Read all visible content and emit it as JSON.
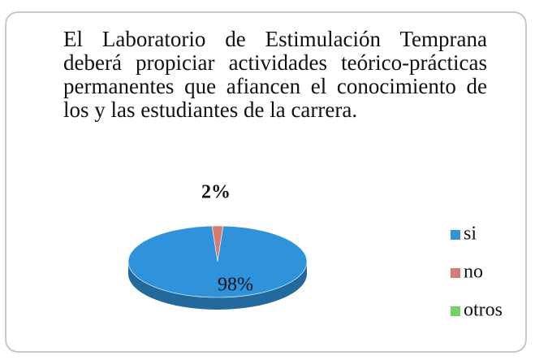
{
  "chart_data": {
    "type": "pie",
    "title": "El Laboratorio de Estimulación Temprana deberá propiciar actividades teórico-prácticas permanentes que afiancen el conocimiento de los y las estudiantes de la carrera.",
    "categories": [
      "si",
      "no",
      "otros"
    ],
    "values": [
      98,
      2,
      0
    ],
    "value_labels": [
      "98%",
      "2%",
      null
    ],
    "colors": [
      "#2f93dc",
      "#d97a70",
      "#72d16a"
    ],
    "legend": "right"
  }
}
